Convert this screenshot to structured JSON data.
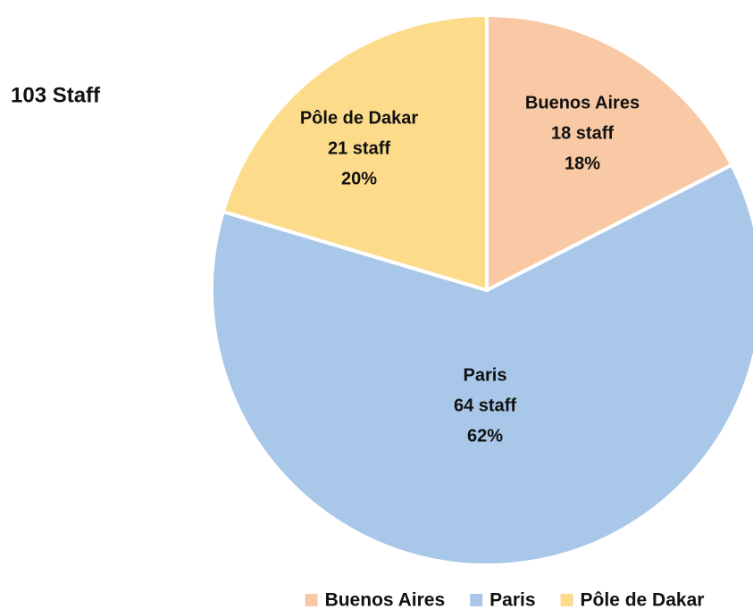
{
  "chart_data": {
    "type": "pie",
    "title": "103 Staff",
    "categories": [
      "Buenos Aires",
      "Paris",
      "Pôle de Dakar"
    ],
    "values": [
      18,
      64,
      21
    ],
    "value_labels": [
      "18 staff",
      "64 staff",
      "21 staff"
    ],
    "percentages": [
      18,
      62,
      20
    ],
    "percentage_labels": [
      "18%",
      "62%",
      "20%"
    ],
    "colors": [
      "#f8c9a4",
      "#a9c7e8",
      "#fcdc8a"
    ],
    "legend": "bottom"
  }
}
